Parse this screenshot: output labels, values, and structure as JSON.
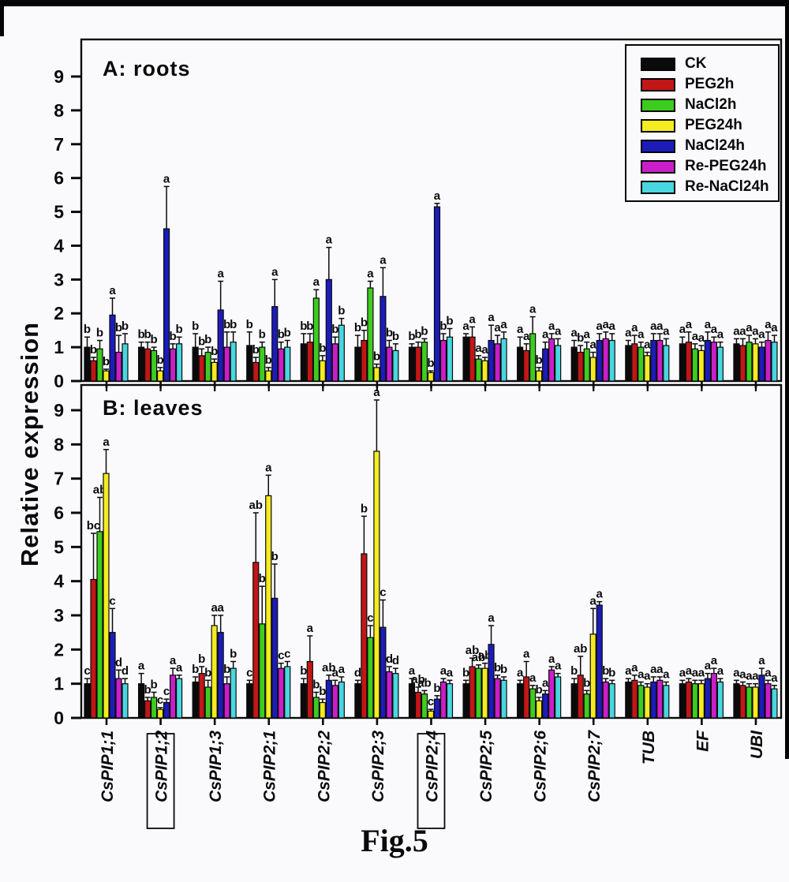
{
  "figure": {
    "caption": "Fig.5",
    "y_axis_label": "Relative  expression"
  },
  "legend": {
    "items": [
      {
        "label": "CK",
        "color": "#0a0a0a"
      },
      {
        "label": "PEG2h",
        "color": "#c31616"
      },
      {
        "label": "NaCl2h",
        "color": "#3ccd1e"
      },
      {
        "label": "PEG24h",
        "color": "#f4eb20"
      },
      {
        "label": "NaCl24h",
        "color": "#1c1cba"
      },
      {
        "label": "Re-PEG24h",
        "color": "#ca1eca"
      },
      {
        "label": "Re-NaCl24h",
        "color": "#48d7e0"
      }
    ]
  },
  "chart_data": [
    {
      "type": "bar",
      "panel": "A",
      "panel_label": "A: roots",
      "ylabel": "Relative expression",
      "ylim": [
        0,
        10
      ],
      "yticks": [
        0,
        1,
        2,
        3,
        4,
        5,
        6,
        7,
        8,
        9
      ],
      "grid": false,
      "legend_position": "top-right",
      "categories": [
        "CsPIP1;1",
        "CsPIP1;2",
        "CsPIP1;3",
        "CsPIP2;1",
        "CsPIP2;2",
        "CsPIP2;3",
        "CsPIP2;4",
        "CsPIP2;5",
        "CsPIP2;6",
        "CsPIP2;7",
        "TUB",
        "EF",
        "UBI"
      ],
      "boxed_categories": [
        "CsPIP1;2",
        "CsPIP2;4"
      ],
      "series": [
        {
          "name": "CK",
          "values": [
            1.0,
            1.0,
            1.0,
            1.05,
            1.1,
            1.0,
            1.0,
            1.3,
            1.0,
            1.0,
            1.05,
            1.1,
            1.1
          ],
          "errors": [
            0.3,
            0.15,
            0.4,
            0.4,
            0.3,
            0.35,
            0.1,
            0.1,
            0.3,
            0.2,
            0.15,
            0.2,
            0.15
          ],
          "letters": [
            "b",
            "b",
            "b",
            "b",
            "b",
            "b",
            "b",
            "a",
            "a",
            "a",
            "a",
            "a",
            "a"
          ]
        },
        {
          "name": "PEG2h",
          "values": [
            0.6,
            0.95,
            0.75,
            0.55,
            1.15,
            1.2,
            1.0,
            1.3,
            0.9,
            0.85,
            1.1,
            1.15,
            1.05
          ],
          "errors": [
            0.1,
            0.2,
            0.2,
            0.15,
            0.25,
            0.3,
            0.15,
            0.3,
            0.2,
            0.2,
            0.25,
            0.3,
            0.2
          ],
          "letters": [
            "b",
            "b",
            "b",
            "b",
            "b",
            "b",
            "b",
            "a",
            "a",
            "b",
            "a",
            "a",
            "a"
          ]
        },
        {
          "name": "NaCl2h",
          "values": [
            0.95,
            0.9,
            0.85,
            1.0,
            2.45,
            2.75,
            1.15,
            0.65,
            1.4,
            0.95,
            1.0,
            0.95,
            1.15
          ],
          "errors": [
            0.25,
            0.1,
            0.15,
            0.15,
            0.25,
            0.2,
            0.1,
            0.1,
            0.5,
            0.2,
            0.15,
            0.15,
            0.2
          ],
          "letters": [
            "b",
            "b",
            "b",
            "b",
            "a",
            "a",
            "b",
            "a",
            "a",
            "a",
            "a",
            "a",
            "a"
          ]
        },
        {
          "name": "PEG24h",
          "values": [
            0.3,
            0.3,
            0.55,
            0.3,
            0.6,
            0.4,
            0.25,
            0.6,
            0.3,
            0.7,
            0.75,
            0.9,
            1.1
          ],
          "errors": [
            0.05,
            0.1,
            0.1,
            0.1,
            0.15,
            0.1,
            0.05,
            0.1,
            0.1,
            0.15,
            0.1,
            0.15,
            0.15
          ],
          "letters": [
            "b",
            "b",
            "b",
            "b",
            "b",
            "b",
            "b",
            "a",
            "b",
            "a",
            "a",
            "a",
            "a"
          ]
        },
        {
          "name": "NaCl24h",
          "values": [
            1.95,
            4.5,
            2.1,
            2.2,
            3.0,
            2.5,
            5.15,
            1.2,
            0.95,
            1.2,
            1.2,
            1.2,
            1.0
          ],
          "errors": [
            0.5,
            1.25,
            0.85,
            0.8,
            0.95,
            0.85,
            0.1,
            0.45,
            0.2,
            0.2,
            0.2,
            0.25,
            0.15
          ],
          "letters": [
            "a",
            "a",
            "a",
            "a",
            "a",
            "a",
            "a",
            "a",
            "a",
            "a",
            "a",
            "a",
            "a"
          ]
        },
        {
          "name": "Re-PEG24h",
          "values": [
            0.85,
            0.95,
            1.0,
            0.95,
            1.1,
            1.0,
            1.2,
            1.1,
            1.25,
            1.25,
            1.2,
            1.15,
            1.2
          ],
          "errors": [
            0.5,
            0.15,
            0.45,
            0.2,
            0.2,
            0.2,
            0.2,
            0.25,
            0.15,
            0.2,
            0.2,
            0.15,
            0.25
          ],
          "letters": [
            "b",
            "b",
            "b",
            "b",
            "b",
            "b",
            "b",
            "a",
            "a",
            "a",
            "a",
            "a",
            "a"
          ]
        },
        {
          "name": "Re-NaCl24h",
          "values": [
            1.1,
            1.1,
            1.15,
            1.0,
            1.65,
            0.9,
            1.3,
            1.25,
            1.05,
            1.2,
            1.05,
            1.0,
            1.15
          ],
          "errors": [
            0.3,
            0.2,
            0.3,
            0.2,
            0.2,
            0.2,
            0.25,
            0.2,
            0.2,
            0.2,
            0.2,
            0.15,
            0.2
          ],
          "letters": [
            "b",
            "b",
            "b",
            "b",
            "b",
            "b",
            "b",
            "a",
            "a",
            "a",
            "a",
            "a",
            "a"
          ]
        }
      ]
    },
    {
      "type": "bar",
      "panel": "B",
      "panel_label": "B: leaves",
      "ylabel": "Relative expression",
      "ylim": [
        0,
        10
      ],
      "yticks": [
        0,
        1,
        2,
        3,
        4,
        5,
        6,
        7,
        8,
        9
      ],
      "grid": false,
      "categories": [
        "CsPIP1;1",
        "CsPIP1;2",
        "CsPIP1;3",
        "CsPIP2;1",
        "CsPIP2;2",
        "CsPIP2;3",
        "CsPIP2;4",
        "CsPIP2;5",
        "CsPIP2;6",
        "CsPIP2;7",
        "TUB",
        "EF",
        "UBI"
      ],
      "boxed_categories": [
        "CsPIP1;2",
        "CsPIP2;4"
      ],
      "series": [
        {
          "name": "CK",
          "values": [
            1.0,
            1.0,
            1.05,
            1.0,
            1.0,
            1.0,
            1.0,
            1.0,
            1.0,
            1.0,
            1.05,
            1.0,
            1.0
          ],
          "errors": [
            0.15,
            0.3,
            0.15,
            0.1,
            0.15,
            0.1,
            0.15,
            0.1,
            0.1,
            0.15,
            0.1,
            0.1,
            0.1
          ],
          "letters": [
            "c",
            "a",
            "b",
            "c",
            "b",
            "d",
            "a",
            "b",
            "a",
            "b",
            "a",
            "a",
            "a"
          ]
        },
        {
          "name": "PEG2h",
          "values": [
            4.05,
            0.5,
            1.3,
            4.55,
            1.65,
            4.8,
            0.75,
            1.5,
            1.2,
            1.25,
            1.1,
            1.05,
            0.95
          ],
          "errors": [
            1.35,
            0.1,
            0.2,
            1.45,
            0.75,
            1.1,
            0.15,
            0.25,
            0.45,
            0.55,
            0.15,
            0.1,
            0.1
          ],
          "letters": [
            "bc",
            "b",
            "b",
            "ab",
            "a",
            "b",
            "ab",
            "ab",
            "a",
            "ab",
            "a",
            "a",
            "a"
          ]
        },
        {
          "name": "NaCl2h",
          "values": [
            5.45,
            0.6,
            0.9,
            2.75,
            0.6,
            2.35,
            0.7,
            1.45,
            0.85,
            0.7,
            0.95,
            1.0,
            0.9
          ],
          "errors": [
            1.0,
            0.15,
            0.2,
            1.1,
            0.15,
            0.35,
            0.1,
            0.1,
            0.1,
            0.1,
            0.1,
            0.1,
            0.1
          ],
          "letters": [
            "ab",
            "b",
            "b",
            "b",
            "b",
            "c",
            "ab",
            "ab",
            "a",
            "b",
            "a",
            "a",
            "a"
          ]
        },
        {
          "name": "PEG24h",
          "values": [
            7.15,
            0.25,
            2.7,
            6.5,
            0.45,
            7.8,
            0.2,
            1.45,
            0.5,
            2.45,
            0.9,
            1.0,
            0.9
          ],
          "errors": [
            0.7,
            0.05,
            0.3,
            0.6,
            0.1,
            1.5,
            0.05,
            0.15,
            0.1,
            0.75,
            0.1,
            0.1,
            0.1
          ],
          "letters": [
            "a",
            "c",
            "a",
            "a",
            "b",
            "a",
            "c",
            "ab",
            "b",
            "a",
            "a",
            "a",
            "a"
          ]
        },
        {
          "name": "NaCl24h",
          "values": [
            2.5,
            0.45,
            2.5,
            3.5,
            1.1,
            2.65,
            0.55,
            2.15,
            0.7,
            3.3,
            1.05,
            1.15,
            1.25
          ],
          "errors": [
            0.7,
            0.1,
            0.5,
            1.0,
            0.15,
            0.8,
            0.1,
            0.55,
            0.1,
            0.1,
            0.15,
            0.15,
            0.2
          ],
          "letters": [
            "c",
            "c",
            "a",
            "b",
            "ab",
            "c",
            "b",
            "a",
            "a",
            "a",
            "a",
            "a",
            "a"
          ]
        },
        {
          "name": "Re-PEG24h",
          "values": [
            1.15,
            1.25,
            1.0,
            1.45,
            0.95,
            1.35,
            1.05,
            1.15,
            1.4,
            1.05,
            1.1,
            1.3,
            1.0
          ],
          "errors": [
            0.25,
            0.2,
            0.2,
            0.15,
            0.15,
            0.15,
            0.1,
            0.1,
            0.1,
            0.1,
            0.1,
            0.15,
            0.1
          ],
          "letters": [
            "d",
            "a",
            "b",
            "c",
            "a",
            "d",
            "a",
            "b",
            "a",
            "b",
            "a",
            "a",
            "a"
          ]
        },
        {
          "name": "Re-NaCl24h",
          "values": [
            1.0,
            1.15,
            1.45,
            1.5,
            1.05,
            1.3,
            1.0,
            1.1,
            1.2,
            1.0,
            0.95,
            1.05,
            0.85
          ],
          "errors": [
            0.15,
            0.1,
            0.2,
            0.15,
            0.15,
            0.15,
            0.1,
            0.1,
            0.1,
            0.1,
            0.1,
            0.1,
            0.1
          ],
          "letters": [
            "d",
            "a",
            "b",
            "c",
            "a",
            "d",
            "a",
            "b",
            "a",
            "b",
            "a",
            "a",
            "a"
          ]
        }
      ]
    }
  ]
}
